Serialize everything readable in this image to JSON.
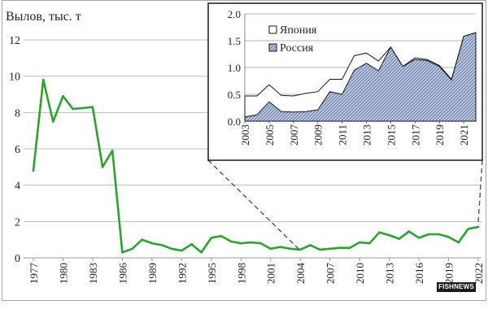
{
  "chart_data": [
    {
      "type": "line",
      "title": "",
      "ylabel": "Вылов, тыс. т",
      "xlabel": "",
      "ylim": [
        0,
        12
      ],
      "yticks": [
        0,
        2,
        4,
        6,
        8,
        10,
        12
      ],
      "xticks": [
        "1977",
        "1980",
        "1983",
        "1986",
        "1989",
        "1992",
        "1995",
        "1998",
        "2001",
        "2004",
        "2007",
        "2010",
        "2013",
        "2016",
        "2019",
        "2022"
      ],
      "x": [
        1977,
        1978,
        1979,
        1980,
        1981,
        1982,
        1983,
        1984,
        1985,
        1986,
        1987,
        1988,
        1989,
        1990,
        1991,
        1992,
        1993,
        1994,
        1995,
        1996,
        1997,
        1998,
        1999,
        2000,
        2001,
        2002,
        2003,
        2004,
        2005,
        2006,
        2007,
        2008,
        2009,
        2010,
        2011,
        2012,
        2013,
        2014,
        2015,
        2016,
        2017,
        2018,
        2019,
        2020,
        2021,
        2022
      ],
      "series": [
        {
          "name": "Вылов",
          "color": "#2ca32c",
          "values": [
            4.8,
            9.8,
            7.5,
            8.9,
            8.2,
            8.25,
            8.3,
            5.0,
            5.9,
            0.3,
            0.5,
            1.0,
            0.8,
            0.7,
            0.5,
            0.4,
            0.75,
            0.3,
            1.1,
            1.2,
            0.9,
            0.8,
            0.85,
            0.8,
            0.5,
            0.6,
            0.5,
            0.45,
            0.7,
            0.45,
            0.5,
            0.55,
            0.55,
            0.85,
            0.8,
            1.4,
            1.25,
            1.05,
            1.45,
            1.1,
            1.3,
            1.3,
            1.15,
            0.85,
            1.6,
            1.7
          ]
        }
      ]
    },
    {
      "type": "area",
      "title": "",
      "ylim": [
        0,
        2
      ],
      "yticks": [
        "0.0",
        "0.5",
        "1.0",
        "1.5",
        "2.0"
      ],
      "xticks": [
        "2003",
        "2005",
        "2007",
        "2009",
        "2011",
        "2013",
        "2015",
        "2017",
        "2019",
        "2021"
      ],
      "x": [
        2003,
        2004,
        2005,
        2006,
        2007,
        2008,
        2009,
        2010,
        2011,
        2012,
        2013,
        2014,
        2015,
        2016,
        2017,
        2018,
        2019,
        2020,
        2021,
        2022
      ],
      "series": [
        {
          "name": "Россия",
          "fill": "pattern",
          "values": [
            0.08,
            0.12,
            0.36,
            0.18,
            0.17,
            0.18,
            0.21,
            0.55,
            0.5,
            0.95,
            1.08,
            0.94,
            1.38,
            1.02,
            1.15,
            1.13,
            1.02,
            0.77,
            1.58,
            1.65
          ]
        },
        {
          "name": "Япония",
          "fill": "#ffffff",
          "values": [
            0.47,
            0.47,
            0.68,
            0.48,
            0.47,
            0.52,
            0.55,
            0.78,
            0.78,
            1.22,
            1.27,
            1.12,
            1.38,
            1.02,
            1.18,
            1.15,
            1.04,
            0.78,
            1.58,
            1.65
          ]
        }
      ]
    }
  ],
  "watermark": "FISHNEWS"
}
